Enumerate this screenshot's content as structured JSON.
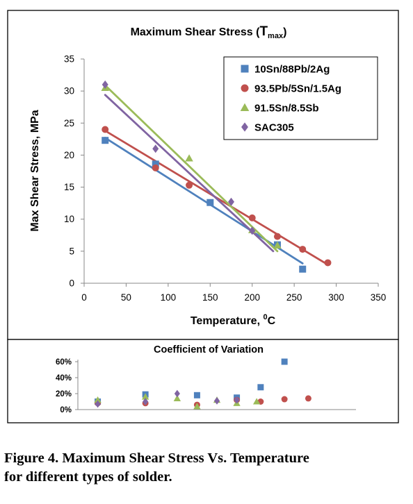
{
  "figure_caption": {
    "line1": "Figure 4.  Maximum Shear Stress Vs. Temperature",
    "line2": "for different types of solder."
  },
  "chart_data": [
    {
      "type": "scatter",
      "title": "Maximum Shear Stress (",
      "title_symbol": "T",
      "title_subscript": "max",
      "title_suffix": ")",
      "xlabel": "Temperature, ",
      "xlabel_sup": "0",
      "xlabel_suffix": "C",
      "ylabel": "Max Shear Stress, MPa",
      "xlim": [
        0,
        350
      ],
      "ylim": [
        0,
        35
      ],
      "xticks": [
        "0",
        "50",
        "100",
        "150",
        "200",
        "250",
        "300",
        "350"
      ],
      "yticks": [
        "0",
        "5",
        "10",
        "15",
        "20",
        "25",
        "30",
        "35"
      ],
      "grid": false,
      "legend_position": "top-right",
      "trendlines": "linear",
      "series": [
        {
          "name": "10Sn/88Pb/2Ag",
          "marker": "square",
          "color": "#4f81bd",
          "x": [
            25,
            85,
            150,
            230,
            260
          ],
          "y": [
            22.3,
            18.6,
            12.6,
            6.0,
            2.2
          ],
          "trend": {
            "x": [
              25,
              260
            ],
            "y": [
              22.7,
              3.1
            ]
          }
        },
        {
          "name": "93.5Pb/5Sn/1.5Ag",
          "marker": "circle",
          "color": "#c0504d",
          "x": [
            25,
            85,
            125,
            200,
            230,
            260,
            290
          ],
          "y": [
            24.0,
            18.0,
            15.3,
            10.2,
            7.3,
            5.3,
            3.2
          ],
          "trend": {
            "x": [
              25,
              290
            ],
            "y": [
              23.8,
              2.9
            ]
          }
        },
        {
          "name": "91.5Sn/8.5Sb",
          "marker": "triangle",
          "color": "#9bbb59",
          "x": [
            25,
            125,
            200,
            230
          ],
          "y": [
            30.5,
            19.5,
            8.3,
            5.9
          ],
          "trend": {
            "x": [
              25,
              230
            ],
            "y": [
              30.9,
              5.0
            ]
          }
        },
        {
          "name": "SAC305",
          "marker": "diamond",
          "color": "#8064a2",
          "x": [
            25,
            85,
            175,
            200
          ],
          "y": [
            31.0,
            21.0,
            12.7,
            8.2
          ],
          "trend": {
            "x": [
              25,
              225
            ],
            "y": [
              29.4,
              5.0
            ]
          }
        }
      ]
    },
    {
      "type": "scatter",
      "title": "Coefficient of Variation",
      "xlim": [
        0,
        350
      ],
      "ylim": [
        0,
        0.6
      ],
      "yticks": [
        "0%",
        "20%",
        "40%",
        "60%"
      ],
      "grid": false,
      "series": [
        {
          "name": "10Sn/88Pb/2Ag",
          "marker": "square",
          "color": "#4f81bd",
          "x": [
            25,
            85,
            150,
            200,
            230,
            260
          ],
          "y": [
            0.1,
            0.19,
            0.18,
            0.15,
            0.28,
            0.6
          ]
        },
        {
          "name": "93.5Pb/5Sn/1.5Ag",
          "marker": "circle",
          "color": "#c0504d",
          "x": [
            25,
            85,
            150,
            200,
            230,
            260,
            290
          ],
          "y": [
            0.08,
            0.08,
            0.06,
            0.12,
            0.1,
            0.13,
            0.14
          ]
        },
        {
          "name": "91.5Sn/8.5Sb",
          "marker": "triangle",
          "color": "#9bbb59",
          "x": [
            25,
            85,
            125,
            150,
            175,
            200,
            225
          ],
          "y": [
            0.12,
            0.16,
            0.14,
            0.04,
            0.12,
            0.08,
            0.1
          ]
        },
        {
          "name": "SAC305",
          "marker": "diamond",
          "color": "#8064a2",
          "x": [
            25,
            85,
            125,
            175,
            200
          ],
          "y": [
            0.07,
            0.1,
            0.2,
            0.11,
            0.12
          ]
        }
      ]
    }
  ]
}
